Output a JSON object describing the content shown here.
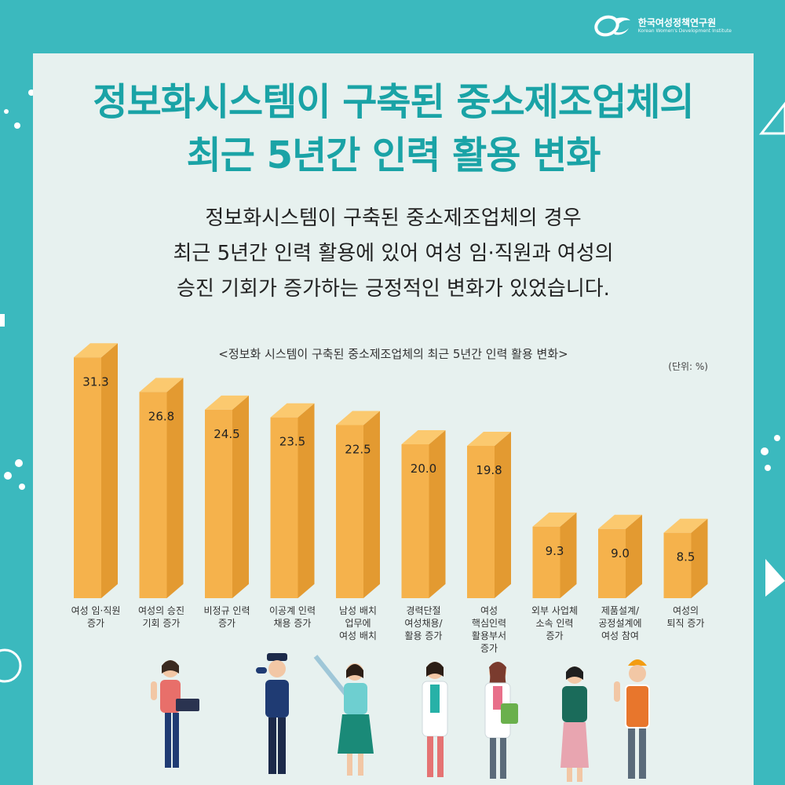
{
  "brand": {
    "name": "한국여성정책연구원",
    "english": "Korean Women's Development Institute"
  },
  "title_line1": "정보화시스템이 구축된 중소제조업체의",
  "title_line2": "최근 5년간 인력 활용 변화",
  "description": [
    "정보화시스템이 구축된 중소제조업체의 경우",
    "최근 5년간 인력 활용에 있어 여성 임·직원과 여성의",
    "승진 기회가 증가하는 긍정적인 변화가 있었습니다."
  ],
  "colors": {
    "teal": "#3bb9be",
    "title": "#1aa3a6",
    "bar_front": "#f5b24c",
    "bar_side": "#e39a31",
    "bar_top": "#fbc96f"
  },
  "chart_data": {
    "type": "bar",
    "title": "<정보화 시스템이 구축된 중소제조업체의 최근 5년간 인력 활용 변화>",
    "unit": "(단위: %)",
    "categories": [
      "여성 임·직원\n증가",
      "여성의 승진\n기회 증가",
      "비정규 인력\n증가",
      "이공계 인력\n채용 증가",
      "남성 배치\n업무에\n여성 배치",
      "경력단절\n여성채용/\n활용 증가",
      "여성\n핵심인력\n활용부서\n증가",
      "외부 사업체\n소속 인력\n증가",
      "제품설계/\n공정설계에\n여성 참여",
      "여성의\n퇴직 증가"
    ],
    "values": [
      31.3,
      26.8,
      24.5,
      23.5,
      22.5,
      20.0,
      19.8,
      9.3,
      9.0,
      8.5
    ],
    "value_labels": [
      "31.3",
      "26.8",
      "24.5",
      "23.5",
      "22.5",
      "20.0",
      "19.8",
      "9.3",
      "9.0",
      "8.5"
    ],
    "ylim": [
      0,
      35
    ],
    "grid": false,
    "legend": "none"
  }
}
